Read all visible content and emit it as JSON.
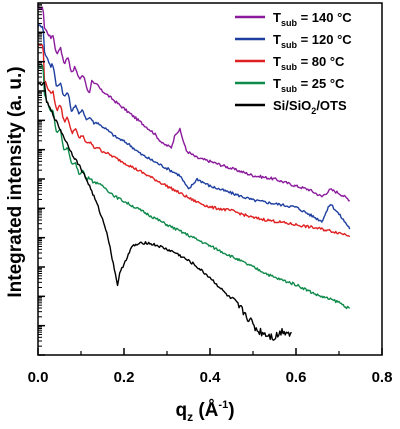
{
  "chart_data": {
    "type": "line",
    "title": "",
    "xlabel": "q",
    "xlabel_sub": "z",
    "xlabel_unit": " (Å",
    "xlabel_sup": "-1",
    "xlabel_close": ")",
    "ylabel": "Integrated intensity (a. u.)",
    "xlim": [
      0.0,
      0.8
    ],
    "x_ticks": [
      0.0,
      0.2,
      0.4,
      0.6,
      0.8
    ],
    "x_tick_labels": [
      "0.0",
      "0.2",
      "0.4",
      "0.6",
      "0.8"
    ],
    "y_tick_labels_shown": false,
    "y_scale": "log",
    "grid": false,
    "legend_placement": "top-right",
    "series": [
      {
        "legend": {
          "prefix": "T",
          "sub": "sub",
          "value": " = 140 °C"
        },
        "color": "#8B1A9C",
        "points": [
          [
            0.0,
            0.985
          ],
          [
            0.012,
            0.985
          ],
          [
            0.015,
            0.93
          ],
          [
            0.03,
            0.9
          ],
          [
            0.05,
            0.86
          ],
          [
            0.07,
            0.83
          ],
          [
            0.09,
            0.8
          ],
          [
            0.11,
            0.78
          ],
          [
            0.12,
            0.74
          ],
          [
            0.125,
            0.78
          ],
          [
            0.15,
            0.75
          ],
          [
            0.18,
            0.72
          ],
          [
            0.21,
            0.69
          ],
          [
            0.24,
            0.66
          ],
          [
            0.27,
            0.63
          ],
          [
            0.29,
            0.6
          ],
          [
            0.31,
            0.59
          ],
          [
            0.32,
            0.63
          ],
          [
            0.33,
            0.64
          ],
          [
            0.345,
            0.58
          ],
          [
            0.37,
            0.56
          ],
          [
            0.4,
            0.55
          ],
          [
            0.45,
            0.53
          ],
          [
            0.5,
            0.51
          ],
          [
            0.55,
            0.5
          ],
          [
            0.6,
            0.48
          ],
          [
            0.63,
            0.47
          ],
          [
            0.66,
            0.45
          ],
          [
            0.68,
            0.47
          ],
          [
            0.7,
            0.46
          ],
          [
            0.725,
            0.44
          ]
        ]
      },
      {
        "legend": {
          "prefix": "T",
          "sub": "sub",
          "value": " = 120 °C"
        },
        "color": "#1E3FA0",
        "points": [
          [
            0.0,
            0.935
          ],
          [
            0.012,
            0.935
          ],
          [
            0.015,
            0.86
          ],
          [
            0.03,
            0.82
          ],
          [
            0.05,
            0.76
          ],
          [
            0.06,
            0.75
          ],
          [
            0.07,
            0.73
          ],
          [
            0.08,
            0.7
          ],
          [
            0.09,
            0.7
          ],
          [
            0.1,
            0.69
          ],
          [
            0.12,
            0.67
          ],
          [
            0.15,
            0.65
          ],
          [
            0.18,
            0.62
          ],
          [
            0.21,
            0.6
          ],
          [
            0.24,
            0.57
          ],
          [
            0.27,
            0.55
          ],
          [
            0.3,
            0.53
          ],
          [
            0.33,
            0.51
          ],
          [
            0.35,
            0.47
          ],
          [
            0.37,
            0.5
          ],
          [
            0.4,
            0.48
          ],
          [
            0.45,
            0.46
          ],
          [
            0.5,
            0.44
          ],
          [
            0.55,
            0.43
          ],
          [
            0.6,
            0.42
          ],
          [
            0.63,
            0.4
          ],
          [
            0.66,
            0.38
          ],
          [
            0.68,
            0.43
          ],
          [
            0.7,
            0.4
          ],
          [
            0.725,
            0.36
          ]
        ]
      },
      {
        "legend": {
          "prefix": "T",
          "sub": "sub",
          "value": " = 80 °C"
        },
        "color": "#E02020",
        "points": [
          [
            0.0,
            0.88
          ],
          [
            0.012,
            0.88
          ],
          [
            0.015,
            0.78
          ],
          [
            0.03,
            0.74
          ],
          [
            0.05,
            0.7
          ],
          [
            0.06,
            0.68
          ],
          [
            0.07,
            0.66
          ],
          [
            0.08,
            0.64
          ],
          [
            0.09,
            0.63
          ],
          [
            0.1,
            0.62
          ],
          [
            0.12,
            0.6
          ],
          [
            0.15,
            0.58
          ],
          [
            0.18,
            0.56
          ],
          [
            0.21,
            0.54
          ],
          [
            0.24,
            0.52
          ],
          [
            0.27,
            0.5
          ],
          [
            0.3,
            0.48
          ],
          [
            0.33,
            0.46
          ],
          [
            0.36,
            0.44
          ],
          [
            0.4,
            0.42
          ],
          [
            0.45,
            0.41
          ],
          [
            0.5,
            0.39
          ],
          [
            0.55,
            0.38
          ],
          [
            0.6,
            0.37
          ],
          [
            0.65,
            0.36
          ],
          [
            0.69,
            0.35
          ],
          [
            0.725,
            0.34
          ]
        ]
      },
      {
        "legend": {
          "prefix": "T",
          "sub": "sub",
          "value": " = 25 °C"
        },
        "color": "#0E8A4A",
        "points": [
          [
            0.0,
            0.82
          ],
          [
            0.012,
            0.82
          ],
          [
            0.015,
            0.74
          ],
          [
            0.03,
            0.69
          ],
          [
            0.04,
            0.66
          ],
          [
            0.05,
            0.63
          ],
          [
            0.06,
            0.6
          ],
          [
            0.07,
            0.57
          ],
          [
            0.08,
            0.55
          ],
          [
            0.09,
            0.53
          ],
          [
            0.1,
            0.52
          ],
          [
            0.12,
            0.5
          ],
          [
            0.15,
            0.48
          ],
          [
            0.18,
            0.45
          ],
          [
            0.21,
            0.43
          ],
          [
            0.24,
            0.41
          ],
          [
            0.27,
            0.39
          ],
          [
            0.3,
            0.37
          ],
          [
            0.35,
            0.34
          ],
          [
            0.4,
            0.31
          ],
          [
            0.45,
            0.28
          ],
          [
            0.5,
            0.25
          ],
          [
            0.55,
            0.22
          ],
          [
            0.6,
            0.2
          ],
          [
            0.65,
            0.17
          ],
          [
            0.7,
            0.15
          ],
          [
            0.725,
            0.13
          ]
        ]
      },
      {
        "legend": {
          "prefix": "Si/SiO",
          "sub": "2",
          "value": "/OTS"
        },
        "color": "#000000",
        "points": [
          [
            0.0,
            0.77
          ],
          [
            0.015,
            0.77
          ],
          [
            0.02,
            0.72
          ],
          [
            0.04,
            0.67
          ],
          [
            0.06,
            0.62
          ],
          [
            0.08,
            0.57
          ],
          [
            0.1,
            0.53
          ],
          [
            0.12,
            0.48
          ],
          [
            0.14,
            0.42
          ],
          [
            0.16,
            0.35
          ],
          [
            0.175,
            0.26
          ],
          [
            0.185,
            0.2
          ],
          [
            0.19,
            0.23
          ],
          [
            0.2,
            0.26
          ],
          [
            0.22,
            0.31
          ],
          [
            0.25,
            0.32
          ],
          [
            0.28,
            0.31
          ],
          [
            0.32,
            0.29
          ],
          [
            0.36,
            0.26
          ],
          [
            0.4,
            0.22
          ],
          [
            0.44,
            0.17
          ],
          [
            0.48,
            0.12
          ],
          [
            0.51,
            0.07
          ],
          [
            0.53,
            0.06
          ],
          [
            0.55,
            0.05
          ],
          [
            0.57,
            0.07
          ],
          [
            0.59,
            0.06
          ]
        ]
      }
    ]
  }
}
